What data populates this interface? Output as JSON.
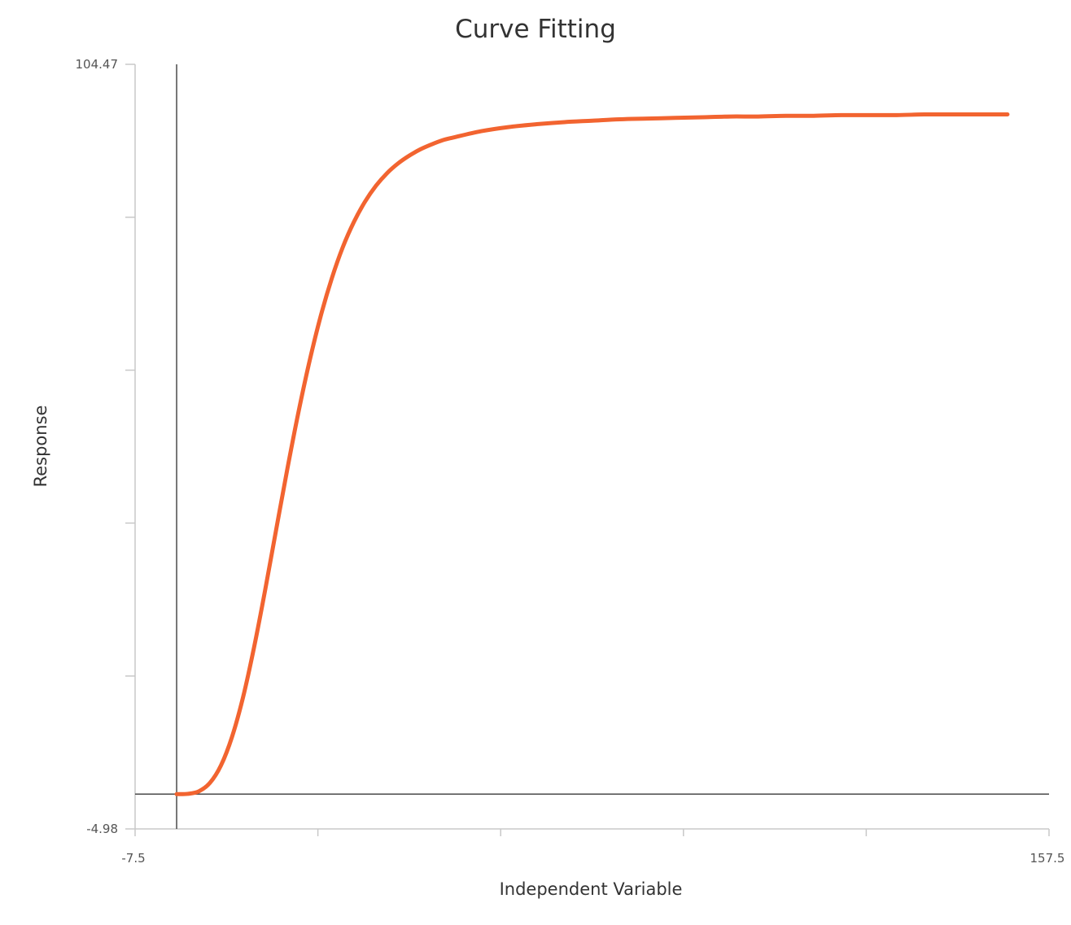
{
  "chart_data": {
    "type": "line",
    "title": "Curve Fitting",
    "xlabel": "Independent Variable",
    "ylabel": "Response",
    "xlim": [
      -7.5,
      157.5
    ],
    "ylim": [
      -4.98,
      104.47
    ],
    "x_tick_labels": [
      "-7.5",
      "157.5"
    ],
    "y_tick_labels": [
      "104.47",
      "-4.98"
    ],
    "x_tick_count": 6,
    "y_tick_count": 6,
    "zero_lines": true,
    "grid": false,
    "legend": "none",
    "curve_color": "#f26430",
    "series": [
      {
        "x": [
          0,
          2,
          4,
          6,
          8,
          10,
          12,
          14,
          16,
          18,
          20,
          22,
          24,
          26,
          28,
          30,
          32,
          34,
          36,
          38,
          40,
          42,
          44,
          46,
          48,
          50,
          55,
          60,
          65,
          70,
          75,
          80,
          85,
          90,
          95,
          100,
          105,
          110,
          115,
          120,
          125,
          130,
          135,
          140,
          145,
          150
        ],
        "y": [
          0.0,
          0.04,
          0.4,
          1.6,
          4.1,
          8.2,
          13.9,
          21.1,
          29.3,
          38.0,
          46.6,
          54.7,
          62.0,
          68.4,
          73.8,
          78.3,
          81.9,
          84.8,
          87.1,
          88.9,
          90.3,
          91.4,
          92.3,
          93.0,
          93.6,
          94.0,
          94.9,
          95.5,
          95.9,
          96.2,
          96.4,
          96.6,
          96.7,
          96.8,
          96.9,
          97.0,
          97.0,
          97.1,
          97.1,
          97.2,
          97.2,
          97.2,
          97.3,
          97.3,
          97.3,
          97.3
        ]
      }
    ]
  }
}
